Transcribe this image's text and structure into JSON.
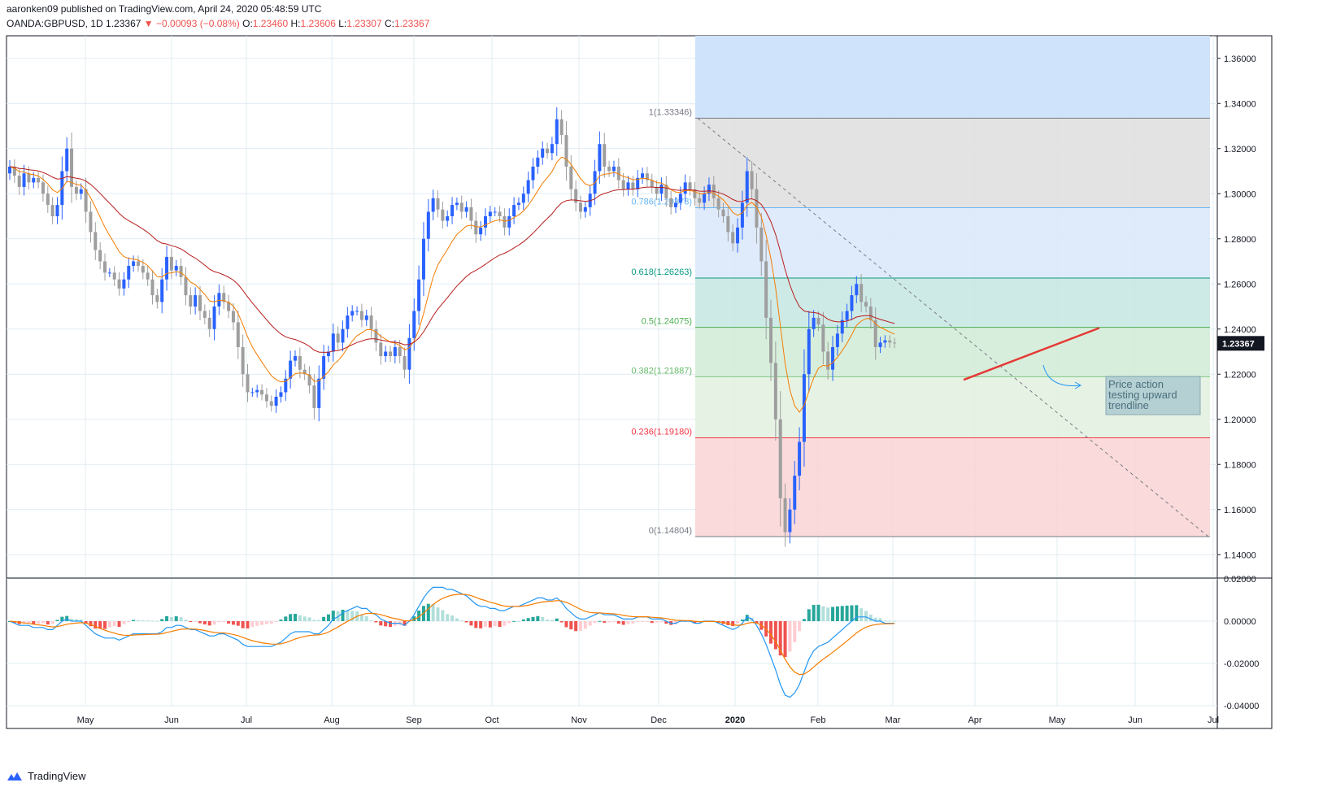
{
  "header": {
    "line1": "aaronken09 published on TradingView.com, April 24, 2020 05:48:59 UTC",
    "symbol": "OANDA:GBPUSD, 1D",
    "last": "1.23367",
    "change": "−0.00093 (−0.08%)",
    "open_label": "O:",
    "open": "1.23460",
    "high_label": "H:",
    "high": "1.23606",
    "low_label": "L:",
    "low": "1.23307",
    "close_label": "C:",
    "close": "1.23367"
  },
  "footer": {
    "brand": "TradingView",
    "logo_icon": "tradingview-logo-icon"
  },
  "colors": {
    "bull": "#2962ff",
    "bear": "#9e9e9e",
    "ema_fast": "#f57c00",
    "ema_slow": "#b71c1c",
    "macd": "#2196f3",
    "signal": "#f57c00",
    "trend": "#e53935"
  },
  "chart_data": [
    {
      "type": "candlestick",
      "price_axis": {
        "min": 1.13,
        "max": 1.37,
        "ticks": [
          "1.36000",
          "1.34000",
          "1.32000",
          "1.30000",
          "1.28000",
          "1.26000",
          "1.24000",
          "1.22000",
          "1.20000",
          "1.18000",
          "1.16000",
          "1.14000"
        ]
      },
      "time_axis": {
        "labels": [
          "May",
          "Jun",
          "Jul",
          "Aug",
          "Sep",
          "Oct",
          "Nov",
          "Dec",
          "2020",
          "Feb",
          "Mar",
          "Apr",
          "May",
          "Jun",
          "Jul"
        ]
      },
      "last_price": "1.23367",
      "fibonacci": [
        {
          "level": "1",
          "price": 1.33346,
          "label": "1(1.33346)"
        },
        {
          "level": "0.786",
          "price": 1.29378,
          "label": "0.786(1.29378)"
        },
        {
          "level": "0.618",
          "price": 1.26263,
          "label": "0.618(1.26263)"
        },
        {
          "level": "0.5",
          "price": 1.24075,
          "label": "0.5(1.24075)"
        },
        {
          "level": "0.382",
          "price": 1.21887,
          "label": "0.382(1.21887)"
        },
        {
          "level": "0.236",
          "price": 1.1918,
          "label": "0.236(1.19180)"
        },
        {
          "level": "0",
          "price": 1.14804,
          "label": "0(1.14804)"
        }
      ],
      "trendline": {
        "from": {
          "x": "2020-03-30",
          "y": 1.2175
        },
        "to": {
          "x": "2020-05-15",
          "y": 1.2405
        }
      },
      "annotation": "Price action testing upward trendline",
      "series_close": [
        1.312,
        1.308,
        1.303,
        1.309,
        1.305,
        1.307,
        1.305,
        1.3,
        1.295,
        1.29,
        1.295,
        1.31,
        1.32,
        1.303,
        1.3,
        1.302,
        1.292,
        1.283,
        1.275,
        1.27,
        1.265,
        1.265,
        1.262,
        1.258,
        1.262,
        1.268,
        1.27,
        1.268,
        1.265,
        1.262,
        1.255,
        1.252,
        1.262,
        1.272,
        1.266,
        1.268,
        1.263,
        1.255,
        1.25,
        1.255,
        1.248,
        1.245,
        1.24,
        1.25,
        1.256,
        1.252,
        1.248,
        1.243,
        1.232,
        1.22,
        1.212,
        1.212,
        1.213,
        1.211,
        1.208,
        1.206,
        1.21,
        1.212,
        1.218,
        1.226,
        1.228,
        1.222,
        1.22,
        1.215,
        1.205,
        1.218,
        1.228,
        1.23,
        1.238,
        1.234,
        1.24,
        1.246,
        1.248,
        1.248,
        1.244,
        1.246,
        1.24,
        1.234,
        1.228,
        1.23,
        1.228,
        1.232,
        1.228,
        1.222,
        1.236,
        1.248,
        1.262,
        1.28,
        1.292,
        1.298,
        1.293,
        1.288,
        1.29,
        1.295,
        1.296,
        1.292,
        1.294,
        1.288,
        1.282,
        1.285,
        1.29,
        1.292,
        1.292,
        1.29,
        1.285,
        1.29,
        1.295,
        1.296,
        1.3,
        1.306,
        1.312,
        1.316,
        1.32,
        1.318,
        1.322,
        1.333,
        1.326,
        1.312,
        1.302,
        1.296,
        1.292,
        1.294,
        1.3,
        1.31,
        1.322,
        1.312,
        1.31,
        1.312,
        1.306,
        1.302,
        1.305,
        1.302,
        1.307,
        1.309,
        1.306,
        1.303,
        1.3,
        1.304,
        1.298,
        1.294,
        1.296,
        1.3,
        1.305,
        1.302,
        1.298,
        1.296,
        1.3,
        1.304,
        1.298,
        1.293,
        1.29,
        1.283,
        1.278,
        1.285,
        1.296,
        1.31,
        1.302,
        1.285,
        1.27,
        1.245,
        1.225,
        1.2,
        1.165,
        1.15,
        1.16,
        1.175,
        1.19,
        1.22,
        1.24,
        1.245,
        1.242,
        1.23,
        1.222,
        1.232,
        1.238,
        1.244,
        1.248,
        1.255,
        1.26,
        1.252,
        1.25,
        1.244,
        1.232,
        1.234,
        1.235,
        1.234,
        1.23367
      ]
    },
    {
      "type": "macd",
      "axis": {
        "min": -0.04,
        "max": 0.02,
        "ticks": [
          "0.02000",
          "0.00000",
          "-0.02000",
          "-0.04000"
        ]
      },
      "macd": [
        0.0,
        -0.001,
        -0.002,
        -0.002,
        -0.002,
        -0.003,
        -0.003,
        -0.003,
        -0.004,
        -0.004,
        -0.002,
        0.0,
        0.001,
        0.0,
        0.0,
        0.0,
        -0.002,
        -0.004,
        -0.006,
        -0.007,
        -0.008,
        -0.008,
        -0.008,
        -0.009,
        -0.008,
        -0.007,
        -0.006,
        -0.006,
        -0.006,
        -0.006,
        -0.006,
        -0.006,
        -0.005,
        -0.003,
        -0.003,
        -0.002,
        -0.002,
        -0.003,
        -0.004,
        -0.004,
        -0.005,
        -0.006,
        -0.007,
        -0.007,
        -0.006,
        -0.006,
        -0.007,
        -0.008,
        -0.009,
        -0.011,
        -0.012,
        -0.012,
        -0.012,
        -0.012,
        -0.012,
        -0.012,
        -0.011,
        -0.01,
        -0.008,
        -0.006,
        -0.005,
        -0.005,
        -0.005,
        -0.005,
        -0.006,
        -0.006,
        -0.004,
        -0.002,
        0.001,
        0.002,
        0.004,
        0.005,
        0.006,
        0.007,
        0.006,
        0.006,
        0.004,
        0.003,
        0.001,
        0.0,
        -0.001,
        -0.001,
        -0.001,
        -0.002,
        0.0,
        0.003,
        0.007,
        0.011,
        0.014,
        0.016,
        0.016,
        0.016,
        0.015,
        0.015,
        0.014,
        0.013,
        0.012,
        0.01,
        0.008,
        0.007,
        0.007,
        0.006,
        0.006,
        0.005,
        0.005,
        0.006,
        0.007,
        0.007,
        0.008,
        0.009,
        0.01,
        0.011,
        0.011,
        0.01,
        0.01,
        0.011,
        0.009,
        0.006,
        0.004,
        0.002,
        0.001,
        0.001,
        0.002,
        0.003,
        0.004,
        0.003,
        0.003,
        0.003,
        0.002,
        0.001,
        0.001,
        0.001,
        0.002,
        0.002,
        0.002,
        0.001,
        0.001,
        0.001,
        0.0,
        -0.001,
        -0.001,
        0.0,
        0.0,
        0.0,
        -0.001,
        -0.001,
        0.0,
        0.0,
        0.0,
        -0.001,
        -0.002,
        -0.003,
        -0.004,
        -0.003,
        -0.001,
        0.002,
        0.001,
        -0.002,
        -0.006,
        -0.011,
        -0.017,
        -0.023,
        -0.03,
        -0.035,
        -0.036,
        -0.034,
        -0.03,
        -0.024,
        -0.018,
        -0.014,
        -0.012,
        -0.011,
        -0.01,
        -0.008,
        -0.006,
        -0.004,
        -0.002,
        0.0,
        0.002,
        0.002,
        0.002,
        0.001,
        0.0,
        0.0,
        -0.001,
        -0.001,
        -0.001
      ],
      "signal_period": 9
    }
  ]
}
